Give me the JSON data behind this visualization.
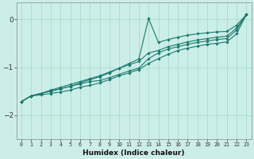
{
  "xlabel": "Humidex (Indice chaleur)",
  "background_color": "#cceee8",
  "grid_color": "#aaddcc",
  "line_color": "#1a7a6e",
  "xlim": [
    -0.5,
    23.5
  ],
  "ylim": [
    -2.5,
    0.35
  ],
  "yticks": [
    0,
    -1,
    -2
  ],
  "ytick_labels": [
    "0",
    "−1",
    "−2"
  ],
  "x_ticks": [
    0,
    1,
    2,
    3,
    4,
    5,
    6,
    7,
    8,
    9,
    10,
    11,
    12,
    13,
    14,
    15,
    16,
    17,
    18,
    19,
    20,
    21,
    22,
    23
  ],
  "lines": {
    "line1": [
      -1.72,
      -1.6,
      -1.55,
      -1.5,
      -1.45,
      -1.4,
      -1.35,
      -1.3,
      -1.28,
      -1.22,
      -1.15,
      -1.08,
      -1.02,
      -0.82,
      -0.7,
      -0.62,
      -0.57,
      -0.52,
      -0.48,
      -0.45,
      -0.42,
      -0.4,
      -0.22,
      0.1
    ],
    "line2": [
      -1.72,
      -1.6,
      -1.55,
      -1.48,
      -1.42,
      -1.36,
      -1.3,
      -1.24,
      -1.18,
      -1.1,
      -1.02,
      -0.95,
      -0.88,
      -0.7,
      -0.65,
      -0.57,
      -0.52,
      -0.47,
      -0.43,
      -0.4,
      -0.37,
      -0.35,
      -0.18,
      0.1
    ],
    "line3": [
      -1.72,
      -1.6,
      -1.55,
      -1.5,
      -1.45,
      -1.4,
      -1.33,
      -1.26,
      -1.2,
      -1.12,
      -1.02,
      -0.92,
      -0.83,
      0.02,
      -0.48,
      -0.42,
      -0.37,
      -0.33,
      -0.3,
      -0.28,
      -0.26,
      -0.25,
      -0.12,
      0.1
    ],
    "line4": [
      -1.72,
      -1.6,
      -1.58,
      -1.55,
      -1.52,
      -1.48,
      -1.42,
      -1.38,
      -1.33,
      -1.26,
      -1.18,
      -1.12,
      -1.05,
      -0.92,
      -0.82,
      -0.73,
      -0.65,
      -0.6,
      -0.56,
      -0.52,
      -0.5,
      -0.47,
      -0.3,
      0.1
    ]
  }
}
